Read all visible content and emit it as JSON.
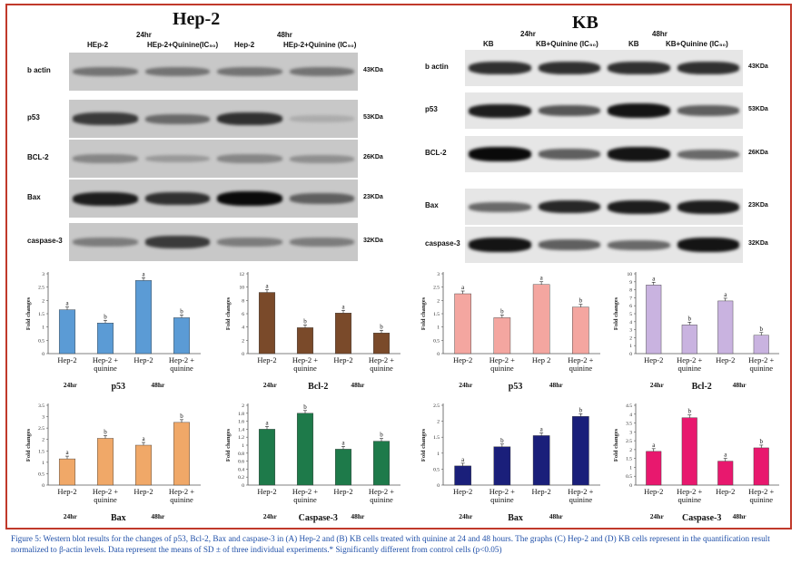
{
  "panelA": {
    "title": "Hep-2",
    "time1": "24hr",
    "time2": "48hr",
    "lanes": [
      "HEp-2",
      "HEp-2+Quinine(IC₅₀)",
      "Hep-2",
      "HEp-2+Quinine (IC₅₀)"
    ],
    "rows": [
      {
        "label": "b actin",
        "kda": "43KDa"
      },
      {
        "label": "p53",
        "kda": "53KDa"
      },
      {
        "label": "BCL-2",
        "kda": "26KDa"
      },
      {
        "label": "Bax",
        "kda": "23KDa"
      },
      {
        "label": "caspase-3",
        "kda": "32KDa"
      }
    ]
  },
  "panelB": {
    "title": "KB",
    "time1": "24hr",
    "time2": "48hr",
    "lanes": [
      "KB",
      "KB+Quinine (IC₅₀)",
      "KB",
      "KB+Quinine (IC₅₀)"
    ],
    "rows": [
      {
        "label": "b actin",
        "kda": "43KDa"
      },
      {
        "label": "p53",
        "kda": "53KDa"
      },
      {
        "label": "BCL-2",
        "kda": "26KDa"
      },
      {
        "label": "Bax",
        "kda": "23KDa"
      },
      {
        "label": "caspase-3",
        "kda": "32KDa"
      }
    ]
  },
  "chart_data": [
    {
      "type": "bar",
      "id": "c1",
      "ylabel": "Fold changes",
      "ylim": [
        0,
        3
      ],
      "yticks": [
        0,
        0.5,
        1,
        1.5,
        2,
        2.5,
        3
      ],
      "categories": [
        "Hep-2",
        "Hep-2 + quinine",
        "Hep-2",
        "Hep-2 + quinine"
      ],
      "values": [
        1.65,
        1.15,
        2.75,
        1.35
      ],
      "letters": [
        "a",
        "b",
        "a",
        "b"
      ],
      "time1": "24hr",
      "time2": "48hr",
      "name_label": "p53",
      "color": "#5b9bd5"
    },
    {
      "type": "bar",
      "id": "c2",
      "ylabel": "Fold changes",
      "ylim": [
        0,
        12
      ],
      "yticks": [
        0,
        2,
        4,
        6,
        8,
        10,
        12
      ],
      "categories": [
        "Hep-2",
        "Hep-2 + quinine",
        "Hep-2",
        "Hep-2 + quinine"
      ],
      "values": [
        9.2,
        3.9,
        6.1,
        3.1
      ],
      "letters": [
        "a",
        "b",
        "a",
        "b"
      ],
      "time1": "24hr",
      "time2": "48hr",
      "name_label": "Bcl-2",
      "color": "#7a4a2a"
    },
    {
      "type": "bar",
      "id": "c3",
      "ylabel": "Fold changes",
      "ylim": [
        0,
        3
      ],
      "yticks": [
        0,
        0.5,
        1,
        1.5,
        2,
        2.5,
        3
      ],
      "categories": [
        "Hep-2",
        "Hep-2 + quinine",
        "Hep 2",
        "Hep-2 + quinine"
      ],
      "values": [
        2.25,
        1.35,
        2.6,
        1.75
      ],
      "letters": [
        "a",
        "b",
        "a",
        "b"
      ],
      "time1": "24hr",
      "time2": "48hr",
      "name_label": "p53",
      "color": "#f4a6a0"
    },
    {
      "type": "bar",
      "id": "c4",
      "ylabel": "Fold changes",
      "ylim": [
        0,
        10
      ],
      "yticks": [
        0,
        1,
        2,
        3,
        4,
        5,
        6,
        7,
        8,
        9,
        10
      ],
      "categories": [
        "Hep-2",
        "Hep-2 + quinine",
        "Hep-2",
        "Hep-2 + quinine"
      ],
      "values": [
        8.6,
        3.6,
        6.6,
        2.3
      ],
      "letters": [
        "a",
        "b",
        "a",
        "b"
      ],
      "time1": "24hr",
      "time2": "48hr",
      "name_label": "Bcl-2",
      "color": "#c9b3e0"
    },
    {
      "type": "bar",
      "id": "c5",
      "ylabel": "Fold changes",
      "ylim": [
        0,
        3.5
      ],
      "yticks": [
        0,
        0.5,
        1,
        1.5,
        2,
        2.5,
        3,
        3.5
      ],
      "categories": [
        "Hep-2",
        "Hep-2 + quinine",
        "Hep-2",
        "Hep-2 + quinine"
      ],
      "values": [
        1.15,
        2.05,
        1.75,
        2.75
      ],
      "letters": [
        "a",
        "b",
        "a",
        "b"
      ],
      "time1": "24hr",
      "time2": "48hr",
      "name_label": "Bax",
      "color": "#f0a868"
    },
    {
      "type": "bar",
      "id": "c6",
      "ylabel": "Fold changes",
      "ylim": [
        0,
        2
      ],
      "yticks": [
        0,
        0.2,
        0.4,
        0.6,
        0.8,
        1,
        1.2,
        1.4,
        1.6,
        1.8,
        2
      ],
      "categories": [
        "Hep-2",
        "Hep-2 + quinine",
        "Hep-2",
        "Hep-2 + quinine"
      ],
      "values": [
        1.4,
        1.8,
        0.9,
        1.1
      ],
      "letters": [
        "a",
        "b",
        "a",
        "b"
      ],
      "time1": "24hr",
      "time2": "48hr",
      "name_label": "Caspase-3",
      "color": "#1e7a4a"
    },
    {
      "type": "bar",
      "id": "c7",
      "ylabel": "Fold changes",
      "ylim": [
        0,
        2.5
      ],
      "yticks": [
        0,
        0.5,
        1,
        1.5,
        2,
        2.5
      ],
      "categories": [
        "Hep-2",
        "Hep-2 + quinine",
        "Hep-2",
        "Hep-2 + quinine"
      ],
      "values": [
        0.6,
        1.2,
        1.55,
        2.15
      ],
      "letters": [
        "a",
        "b",
        "a",
        "b"
      ],
      "time1": "24hr",
      "time2": "48hr",
      "name_label": "Bax",
      "color": "#1a1f7a"
    },
    {
      "type": "bar",
      "id": "c8",
      "ylabel": "Fold changes",
      "ylim": [
        0,
        4.5
      ],
      "yticks": [
        0,
        0.5,
        1,
        1.5,
        2,
        2.5,
        3,
        3.5,
        4,
        4.5
      ],
      "categories": [
        "Hep-2",
        "Hep-2 + quinine",
        "Hep-2",
        "Hep-2 + quinine"
      ],
      "values": [
        1.9,
        3.8,
        1.35,
        2.1
      ],
      "letters": [
        "a",
        "b",
        "a",
        "b"
      ],
      "time1": "24hr",
      "time2": "48hr",
      "name_label": "Caspase-3",
      "color": "#e8186e"
    }
  ],
  "caption": "Figure 5: Western blot results for the changes of p53, Bcl-2, Bax and caspase-3 in (A) Hep-2 and (B) KB cells treated with quinine at 24 and 48 hours. The graphs (C) Hep-2 and (D) KB cells represent in the quantification result normalized to β-actin levels. Data represent the means of SD ± of three individual experiments.* Significantly different from control cells (p<0.05)",
  "colors": {
    "frame": "#c0392b",
    "caption": "#1f4fa8"
  }
}
